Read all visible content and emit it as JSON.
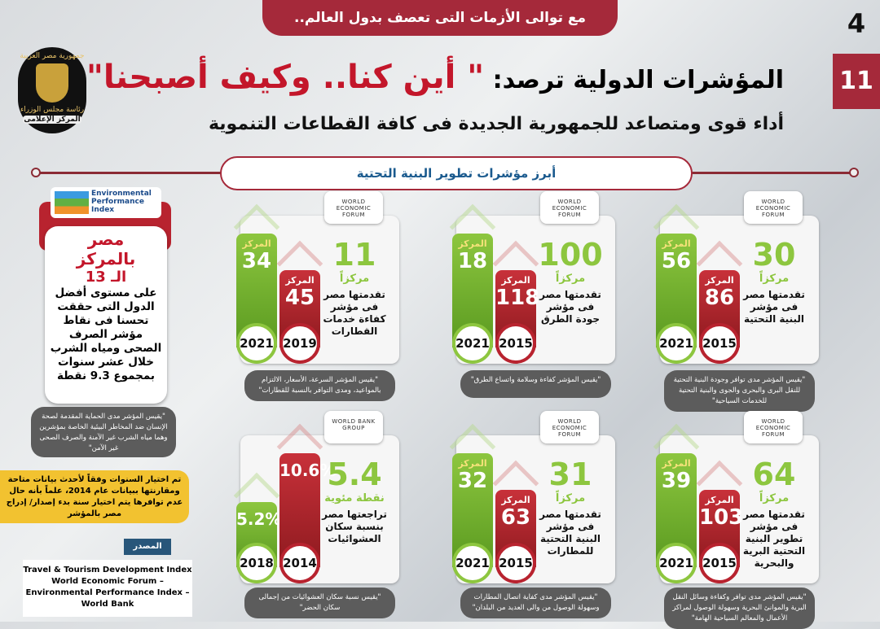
{
  "header": {
    "banner": "مع توالى الأزمات التى تعصف بدول العالم..",
    "title_prefix": "المؤشرات الدولية ترصد:",
    "title_highlight": "\" أين كنا.. وكيف أصبحنا\"",
    "subtitle": "أداء قوى ومتصاعد للجمهورية الجديدة فى كافة القطاعات التنموية",
    "page_number_small": "4",
    "page_number": "11"
  },
  "logo": {
    "top": "جمهورية مصر العربية",
    "middle": "رئاسة مجلس الوزراء",
    "bottom": "المركز الإعلامى"
  },
  "section_title": "أبرز مؤشرات تطوير البنية التحتية",
  "colors": {
    "accent_red": "#a5293a",
    "green": "#8dc63f",
    "title_red": "#c3162a"
  },
  "epi": {
    "logo": "Environmental Performance Index",
    "line1": "مصر",
    "line2": "بالمركز",
    "line3": "الـ 13",
    "body": "على مستوى أفضل الدول التى حققت تحسنا فى نقاط مؤشر الصرف الصحى ومياه الشرب خلال عشر سنوات بمجموع 9.3 نقطة",
    "note": "\"يقيس المؤشر مدى الحماية المقدمة لصحة الإنسان ضد المخاطر البيئية الخاصة بمؤشرين وهما مياه الشرب غير الآمنة والصرف الصحى غير الآمن\""
  },
  "methodology_note": "تم اختيار السنوات وفقاً لأحدث بيانات متاحة ومقارنتها ببيانات عام 2014، علماً بأنه حال عدم توافرها يتم اختيار سنة بدء إصدار/ إدراج مصر بالمؤشر",
  "source": {
    "label": "المصدر",
    "text": "Travel & Tourism Development Index World Economic Forum – Environmental Performance Index – World Bank"
  },
  "cards": [
    {
      "logo": "WORLD ECONOMIC FORUM",
      "rank_label": "المركز",
      "new_value": "56",
      "new_year": "2021",
      "old_value": "86",
      "old_year": "2015",
      "big": "30",
      "unit": "مركزاً",
      "desc": "تقدمتها مصر فى مؤشر البنية التحتية",
      "note": "\"يقيس المؤشر مدى توافر وجودة البنية التحتية للنقل البرى والبحرى والجوى والبنية التحتية للخدمات السياحية\""
    },
    {
      "logo": "WORLD ECONOMIC FORUM",
      "rank_label": "المركز",
      "new_value": "18",
      "new_year": "2021",
      "old_value": "118",
      "old_year": "2015",
      "big": "100",
      "unit": "مركزاً",
      "desc": "تقدمتها مصر فى مؤشر جودة الطرق",
      "note": "\"يقيس المؤشر كفاءة وسلامة واتساع الطرق\""
    },
    {
      "logo": "WORLD ECONOMIC FORUM",
      "rank_label": "المركز",
      "new_value": "34",
      "new_year": "2021",
      "old_value": "45",
      "old_year": "2019",
      "big": "11",
      "unit": "مركزاً",
      "desc": "تقدمتها مصر فى مؤشر كفاءة خدمات القطارات",
      "note": "\"يقيس المؤشر السرعة، الأسعار، الالتزام بالمواعيد، ومدى التوافر بالنسبة للقطارات\""
    },
    {
      "logo": "WORLD ECONOMIC FORUM",
      "rank_label": "المركز",
      "new_value": "39",
      "new_year": "2021",
      "old_value": "103",
      "old_year": "2015",
      "big": "64",
      "unit": "مركزاً",
      "desc": "تقدمتها مصر فى مؤشر تطوير البنية التحتية البرية والبحرية",
      "note": "\"يقيس المؤشر مدى توافر وكفاءة وسائل النقل البرية والموانئ البحرية وسهولة الوصول لمراكز الأعمال والمعالم السياحية الهامة\""
    },
    {
      "logo": "WORLD ECONOMIC FORUM",
      "rank_label": "المركز",
      "new_value": "32",
      "new_year": "2021",
      "old_value": "63",
      "old_year": "2015",
      "big": "31",
      "unit": "مركزاً",
      "desc": "تقدمتها مصر فى مؤشر البنية التحتية للمطارات",
      "note": "\"يقيس المؤشر مدى كفاية اتصال المطارات وسهولة الوصول من والى العديد من البلدان\""
    },
    {
      "logo": "WORLD BANK GROUP",
      "rank_label": "",
      "new_value": "5.2%",
      "new_year": "2018",
      "old_value": "10.6%",
      "old_year": "2014",
      "big": "5.4",
      "unit": "نقطة مئوية",
      "desc": "تراجعتها مصر بنسبة سكان العشوائيات",
      "note": "\"يقيس نسبة سكان العشوائيات من إجمالى سكان الحضر\""
    }
  ]
}
